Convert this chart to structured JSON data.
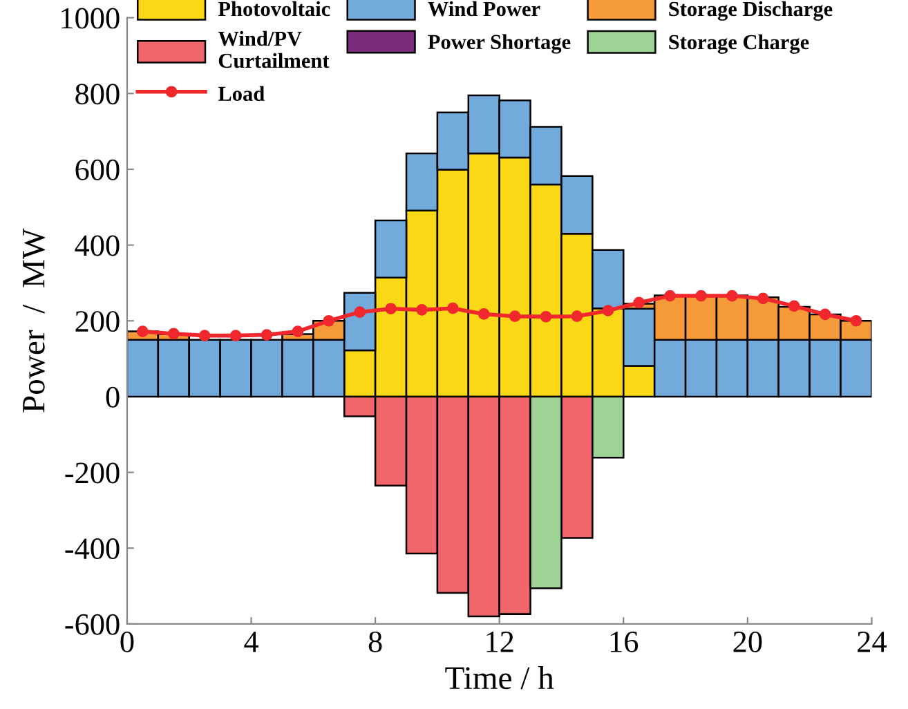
{
  "chart_data": {
    "type": "bar",
    "stacked": true,
    "xlabel": "Time / h",
    "ylabel": "Power  /  MW",
    "x": [
      0.5,
      1.5,
      2.5,
      3.5,
      4.5,
      5.5,
      6.5,
      7.5,
      8.5,
      9.5,
      10.5,
      11.5,
      12.5,
      13.5,
      14.5,
      15.5,
      16.5,
      17.5,
      18.5,
      19.5,
      20.5,
      21.5,
      22.5,
      23.5
    ],
    "xlim": [
      0,
      24
    ],
    "xticks": [
      0,
      4,
      8,
      12,
      16,
      20,
      24
    ],
    "ylim": [
      -600,
      1000
    ],
    "yticks": [
      -600,
      -400,
      -200,
      0,
      200,
      400,
      600,
      800,
      1000
    ],
    "grid": false,
    "legend": "top left",
    "series": [
      {
        "name": "Photovoltaic",
        "color": "#fad816",
        "values": [
          0,
          0,
          0,
          0,
          0,
          0,
          0,
          122,
          314,
          491,
          599,
          642,
          631,
          560,
          430,
          233,
          81,
          0,
          0,
          0,
          0,
          0,
          0,
          0
        ]
      },
      {
        "name": "Wind Power",
        "color": "#72aadb",
        "values": [
          150,
          150,
          150,
          150,
          150,
          150,
          150,
          152,
          151,
          151,
          151,
          153,
          151,
          152,
          152,
          154,
          151,
          150,
          150,
          150,
          150,
          150,
          150,
          150
        ]
      },
      {
        "name": "Storage Discharge",
        "color": "#f59a38",
        "values": [
          22,
          15,
          null,
          null,
          null,
          15,
          50,
          0,
          0,
          0,
          0,
          0,
          0,
          0,
          0,
          0,
          13,
          117,
          117,
          117,
          112,
          87,
          67,
          50
        ]
      },
      {
        "name": "Wind/PV\nCurtailment",
        "color": "#f0666a",
        "values": [
          0,
          0,
          0,
          0,
          0,
          0,
          0,
          -52,
          -235,
          -414,
          -518,
          -580,
          -574,
          0,
          -373,
          0,
          0,
          0,
          0,
          0,
          0,
          0,
          0,
          0
        ]
      },
      {
        "name": "Power Shortage",
        "color": "#7b2a7c",
        "values": [
          0,
          0,
          0,
          0,
          0,
          0,
          0,
          0,
          0,
          0,
          0,
          0,
          0,
          0,
          0,
          0,
          0,
          0,
          0,
          0,
          0,
          0,
          0,
          0
        ]
      },
      {
        "name": "Storage Charge",
        "color": "#9fd395",
        "values": [
          0,
          0,
          0,
          0,
          0,
          0,
          0,
          0,
          0,
          0,
          0,
          0,
          0,
          -506,
          0,
          -161,
          0,
          0,
          0,
          0,
          0,
          0,
          0,
          0
        ]
      },
      {
        "name": "Load",
        "type": "line",
        "color": "#f0282d",
        "marker": "circle",
        "line_style": "solid",
        "values": [
          172,
          166,
          161,
          161,
          163,
          172,
          200,
          223,
          232,
          229,
          233,
          218,
          212,
          211,
          212,
          227,
          248,
          266,
          266,
          266,
          259,
          239,
          217,
          200
        ]
      }
    ]
  }
}
